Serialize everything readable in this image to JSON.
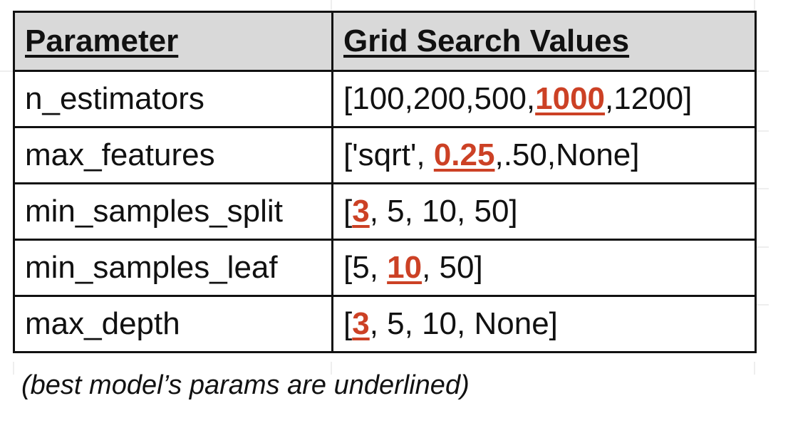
{
  "table": {
    "headers": [
      "Parameter",
      "Grid Search Values"
    ],
    "rows": [
      {
        "param": "n_estimators",
        "pre": "[100,200,500,",
        "best": "1000",
        "post": ",1200]"
      },
      {
        "param": "max_features",
        "pre": "['sqrt', ",
        "best": "0.25",
        "post": ",.50,None]"
      },
      {
        "param": "min_samples_split",
        "pre": "[",
        "best": "3",
        "post": ", 5, 10, 50]"
      },
      {
        "param": "min_samples_leaf",
        "pre": "[5, ",
        "best": "10",
        "post": ", 50]"
      },
      {
        "param": "max_depth",
        "pre": "[",
        "best": "3",
        "post": ", 5, 10, None]"
      }
    ]
  },
  "caption": "(best model’s params are underlined)",
  "colors": {
    "best_value": "#cc4125",
    "header_bg": "#d9d9d9",
    "border": "#111111"
  }
}
